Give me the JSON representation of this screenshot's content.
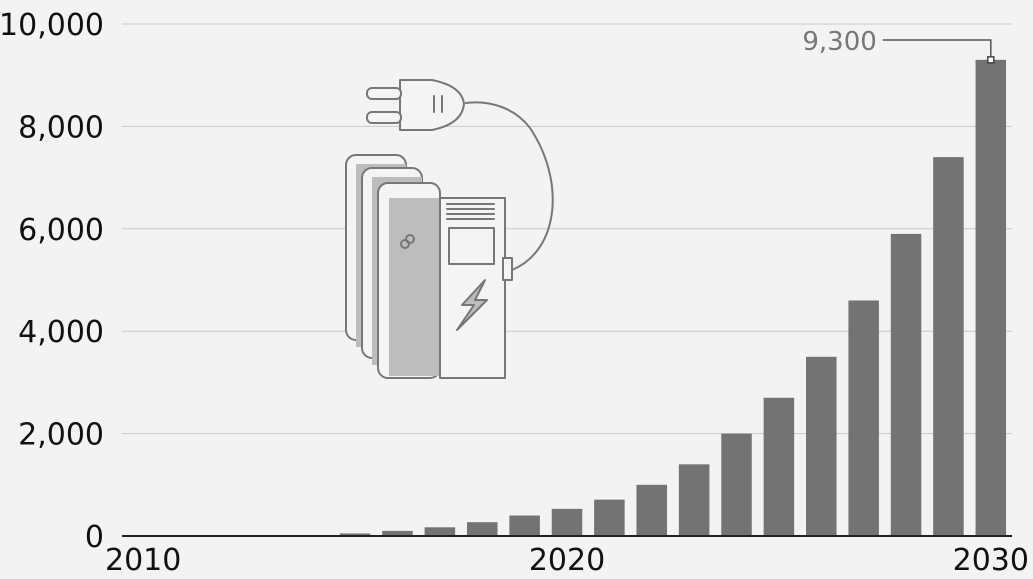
{
  "chart_data": {
    "type": "bar",
    "categories": [
      "2010",
      "2011",
      "2012",
      "2013",
      "2014",
      "2015",
      "2016",
      "2017",
      "2018",
      "2019",
      "2020",
      "2021",
      "2022",
      "2023",
      "2024",
      "2025",
      "2026",
      "2027",
      "2028",
      "2029",
      "2030"
    ],
    "values": [
      0,
      0,
      0,
      0,
      20,
      50,
      100,
      170,
      270,
      400,
      530,
      710,
      1000,
      1400,
      2000,
      2700,
      3500,
      4600,
      5900,
      7400,
      9300
    ],
    "ylim": [
      0,
      10000
    ],
    "y_ticks": [
      "0",
      "2,000",
      "4,000",
      "6,000",
      "8,000",
      "10,000"
    ],
    "y_tick_values": [
      0,
      2000,
      4000,
      6000,
      8000,
      10000
    ],
    "x_ticks": [
      "2010",
      "2020",
      "2030"
    ],
    "x_tick_values": [
      2010,
      2020,
      2030
    ],
    "annotation": {
      "label": "9,300",
      "category": "2030"
    },
    "grid": "horizontal",
    "illustration": "ev-charging-station-with-battery-packs-icon",
    "colors": {
      "bar": "#737373",
      "grid": "#c8c8c8",
      "axis": "#222222",
      "text": "#111111",
      "annotation_text": "#777777",
      "background": "#f3f3f3"
    }
  }
}
